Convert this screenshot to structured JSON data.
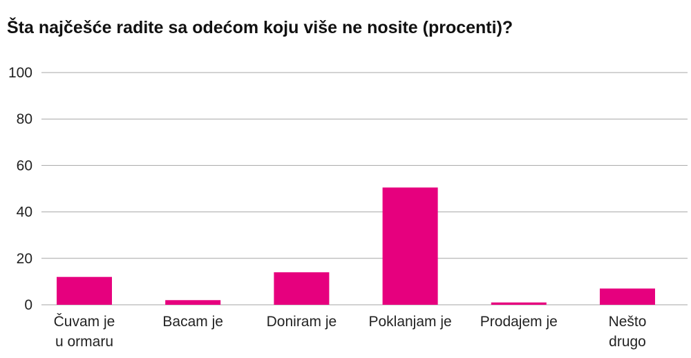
{
  "chart_data": {
    "type": "bar",
    "title": "Šta najčešće radite sa odećom koju više ne nosite (procenti)?",
    "categories": [
      [
        "Čuvam je",
        "u ormaru"
      ],
      [
        "Bacam je"
      ],
      [
        "Doniram je"
      ],
      [
        "Poklanjam je"
      ],
      [
        "Prodajem je"
      ],
      [
        "Nešto",
        "drugo"
      ]
    ],
    "values": [
      12,
      2,
      14,
      50.5,
      1,
      7
    ],
    "ylim": [
      0,
      100
    ],
    "yticks": [
      0,
      20,
      40,
      60,
      80,
      100
    ],
    "grid": true,
    "legend": "none",
    "bar_color": "#e6007e"
  }
}
